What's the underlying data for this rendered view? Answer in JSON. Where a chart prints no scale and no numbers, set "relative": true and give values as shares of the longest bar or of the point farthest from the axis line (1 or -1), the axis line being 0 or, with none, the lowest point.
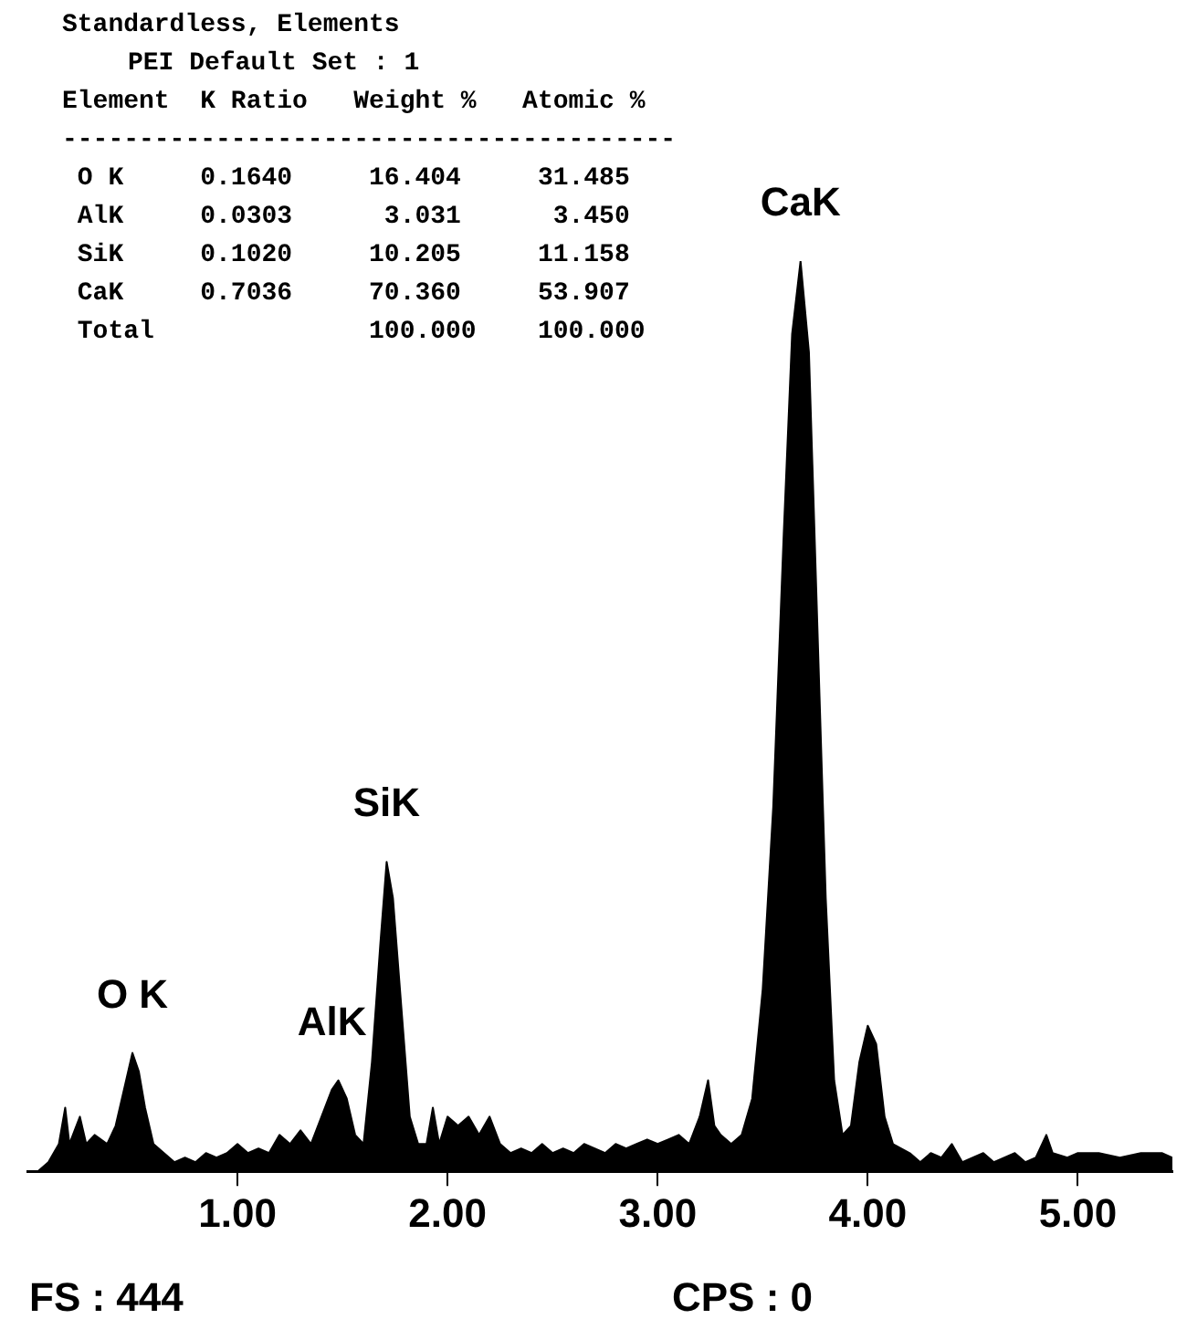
{
  "chart_data": {
    "type": "area",
    "title": "Standardless, Elements",
    "subtitle": "PEI Default Set : 1",
    "relative": true,
    "color": "#000000",
    "grid": false,
    "xlim": [
      0,
      5.45
    ],
    "xticks": [
      {
        "value": 1,
        "label": "1.00"
      },
      {
        "value": 2,
        "label": "2.00"
      },
      {
        "value": 3,
        "label": "3.00"
      },
      {
        "value": 4,
        "label": "4.00"
      },
      {
        "value": 5,
        "label": "5.00"
      }
    ],
    "x": [
      0,
      0.05,
      0.1,
      0.15,
      0.18,
      0.2,
      0.25,
      0.28,
      0.32,
      0.38,
      0.42,
      0.46,
      0.5,
      0.53,
      0.56,
      0.6,
      0.65,
      0.7,
      0.75,
      0.8,
      0.85,
      0.9,
      0.95,
      1.0,
      1.05,
      1.1,
      1.15,
      1.2,
      1.25,
      1.3,
      1.35,
      1.4,
      1.45,
      1.48,
      1.52,
      1.56,
      1.6,
      1.64,
      1.68,
      1.71,
      1.74,
      1.78,
      1.82,
      1.86,
      1.9,
      1.93,
      1.96,
      2.0,
      2.05,
      2.1,
      2.15,
      2.2,
      2.25,
      2.3,
      2.35,
      2.4,
      2.45,
      2.5,
      2.55,
      2.6,
      2.65,
      2.7,
      2.75,
      2.8,
      2.85,
      2.9,
      2.95,
      3.0,
      3.05,
      3.1,
      3.15,
      3.2,
      3.24,
      3.27,
      3.3,
      3.35,
      3.4,
      3.45,
      3.5,
      3.55,
      3.6,
      3.64,
      3.68,
      3.72,
      3.76,
      3.8,
      3.84,
      3.88,
      3.92,
      3.96,
      4.0,
      4.04,
      4.08,
      4.12,
      4.2,
      4.25,
      4.3,
      4.35,
      4.4,
      4.45,
      4.5,
      4.55,
      4.6,
      4.7,
      4.75,
      4.8,
      4.85,
      4.88,
      4.95,
      5.0,
      5.1,
      5.2,
      5.3,
      5.4,
      5.45
    ],
    "values": [
      0,
      0,
      0.01,
      0.03,
      0.07,
      0.03,
      0.06,
      0.03,
      0.04,
      0.03,
      0.05,
      0.09,
      0.13,
      0.11,
      0.07,
      0.03,
      0.02,
      0.01,
      0.015,
      0.01,
      0.02,
      0.015,
      0.02,
      0.03,
      0.02,
      0.025,
      0.02,
      0.04,
      0.03,
      0.045,
      0.03,
      0.06,
      0.09,
      0.1,
      0.08,
      0.04,
      0.03,
      0.12,
      0.25,
      0.34,
      0.3,
      0.18,
      0.06,
      0.03,
      0.03,
      0.07,
      0.03,
      0.06,
      0.05,
      0.06,
      0.04,
      0.06,
      0.03,
      0.02,
      0.025,
      0.02,
      0.03,
      0.02,
      0.025,
      0.02,
      0.03,
      0.025,
      0.02,
      0.03,
      0.025,
      0.03,
      0.035,
      0.03,
      0.035,
      0.04,
      0.03,
      0.06,
      0.1,
      0.05,
      0.04,
      0.03,
      0.04,
      0.08,
      0.2,
      0.4,
      0.7,
      0.92,
      1,
      0.9,
      0.6,
      0.3,
      0.1,
      0.04,
      0.05,
      0.12,
      0.16,
      0.14,
      0.06,
      0.03,
      0.02,
      0.01,
      0.02,
      0.015,
      0.03,
      0.01,
      0.015,
      0.02,
      0.01,
      0.02,
      0.01,
      0.015,
      0.04,
      0.02,
      0.015,
      0.02,
      0.02,
      0.015,
      0.02,
      0.02,
      0.015
    ],
    "annotations": [
      "Element  K Ratio   Weight %   Atomic %",
      "----------------------------------------",
      " O K     0.1640     16.404     31.485",
      " AlK     0.0303      3.031      3.450",
      " SiK     0.1020     10.205     11.158",
      " CaK     0.7036     70.360     53.907",
      " Total              100.000    100.000",
      {
        "text": "O K",
        "x": 0.5,
        "y": 0.13
      },
      {
        "text": "AlK",
        "x": 1.45,
        "y": 0.1
      },
      {
        "text": "SiK",
        "x": 1.71,
        "y": 0.34
      },
      {
        "text": "CaK",
        "x": 3.68,
        "y": 1
      },
      "FS : 444",
      "CPS : 0"
    ]
  }
}
